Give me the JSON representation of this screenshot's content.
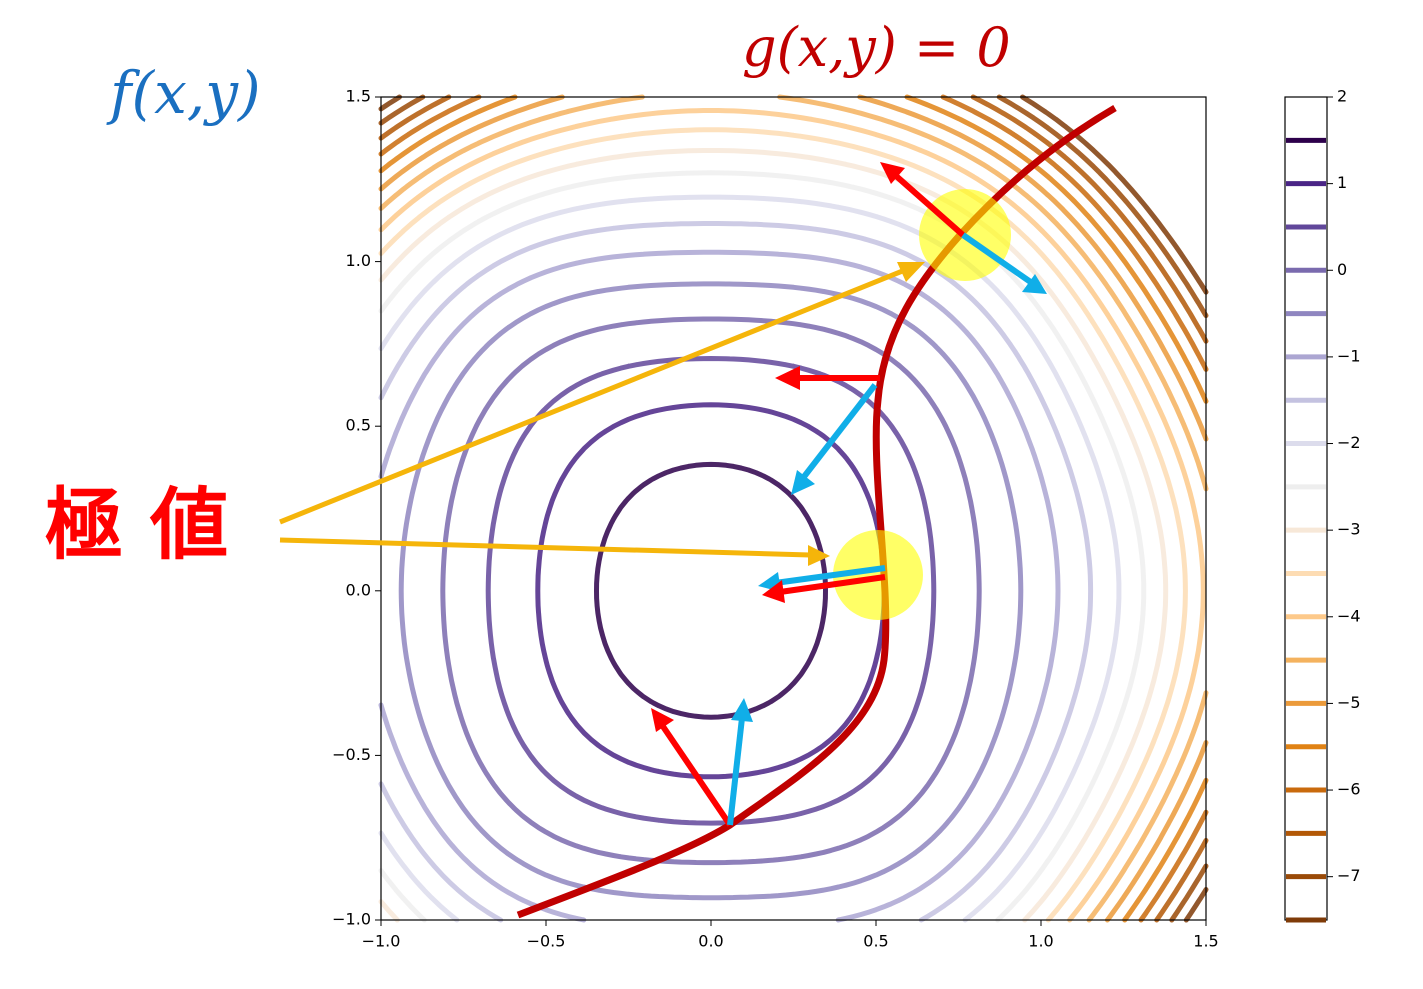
{
  "chart_data": {
    "type": "contour",
    "xlim": [
      -1.0,
      1.5
    ],
    "ylim": [
      -1.0,
      1.5
    ],
    "xticks": [
      {
        "value": -1.0,
        "label": "−1.0"
      },
      {
        "value": -0.5,
        "label": "−0.5"
      },
      {
        "value": 0.0,
        "label": "0.0"
      },
      {
        "value": 0.5,
        "label": "0.5"
      },
      {
        "value": 1.0,
        "label": "1.0"
      },
      {
        "value": 1.5,
        "label": "1.5"
      }
    ],
    "yticks": [
      {
        "value": -1.0,
        "label": "−1.0"
      },
      {
        "value": -0.5,
        "label": "−0.5"
      },
      {
        "value": 0.0,
        "label": "0.0"
      },
      {
        "value": 0.5,
        "label": "0.5"
      },
      {
        "value": 1.0,
        "label": "1.0"
      },
      {
        "value": 1.5,
        "label": "1.5"
      }
    ],
    "levels": [
      -7.5,
      -7,
      -6.5,
      -6,
      -5.5,
      -5,
      -4.5,
      -4,
      -3.5,
      -3,
      -2.5,
      -2,
      -1.5,
      -1,
      -0.5,
      0,
      0.5,
      1,
      1.5
    ],
    "level_colors": [
      "#7f3b08",
      "#9a4a07",
      "#b35806",
      "#c96a0c",
      "#e08214",
      "#eb9a3a",
      "#f4b25e",
      "#fdc98a",
      "#fddcb3",
      "#f7e8d8",
      "#eeeeee",
      "#dcdcec",
      "#c4c2e0",
      "#aca6d2",
      "#8f86c0",
      "#7a6aae",
      "#61479a",
      "#4a2586",
      "#2d004b"
    ],
    "colorbar_lim": [
      -7.5,
      2
    ],
    "colorbar_ticks": [
      2,
      1,
      0,
      {
        "value": -1,
        "label": "−1"
      },
      {
        "value": -2,
        "label": "−2"
      },
      {
        "value": -3,
        "label": "−3"
      },
      {
        "value": -4,
        "label": "−4"
      },
      {
        "value": -5,
        "label": "−5"
      },
      {
        "value": -6,
        "label": "−6"
      },
      {
        "value": -7,
        "label": "−7"
      }
    ],
    "annotations": {
      "objective": "f(x,y)",
      "constraint": "g(x,y) = 0",
      "extremum": "極 値"
    }
  }
}
